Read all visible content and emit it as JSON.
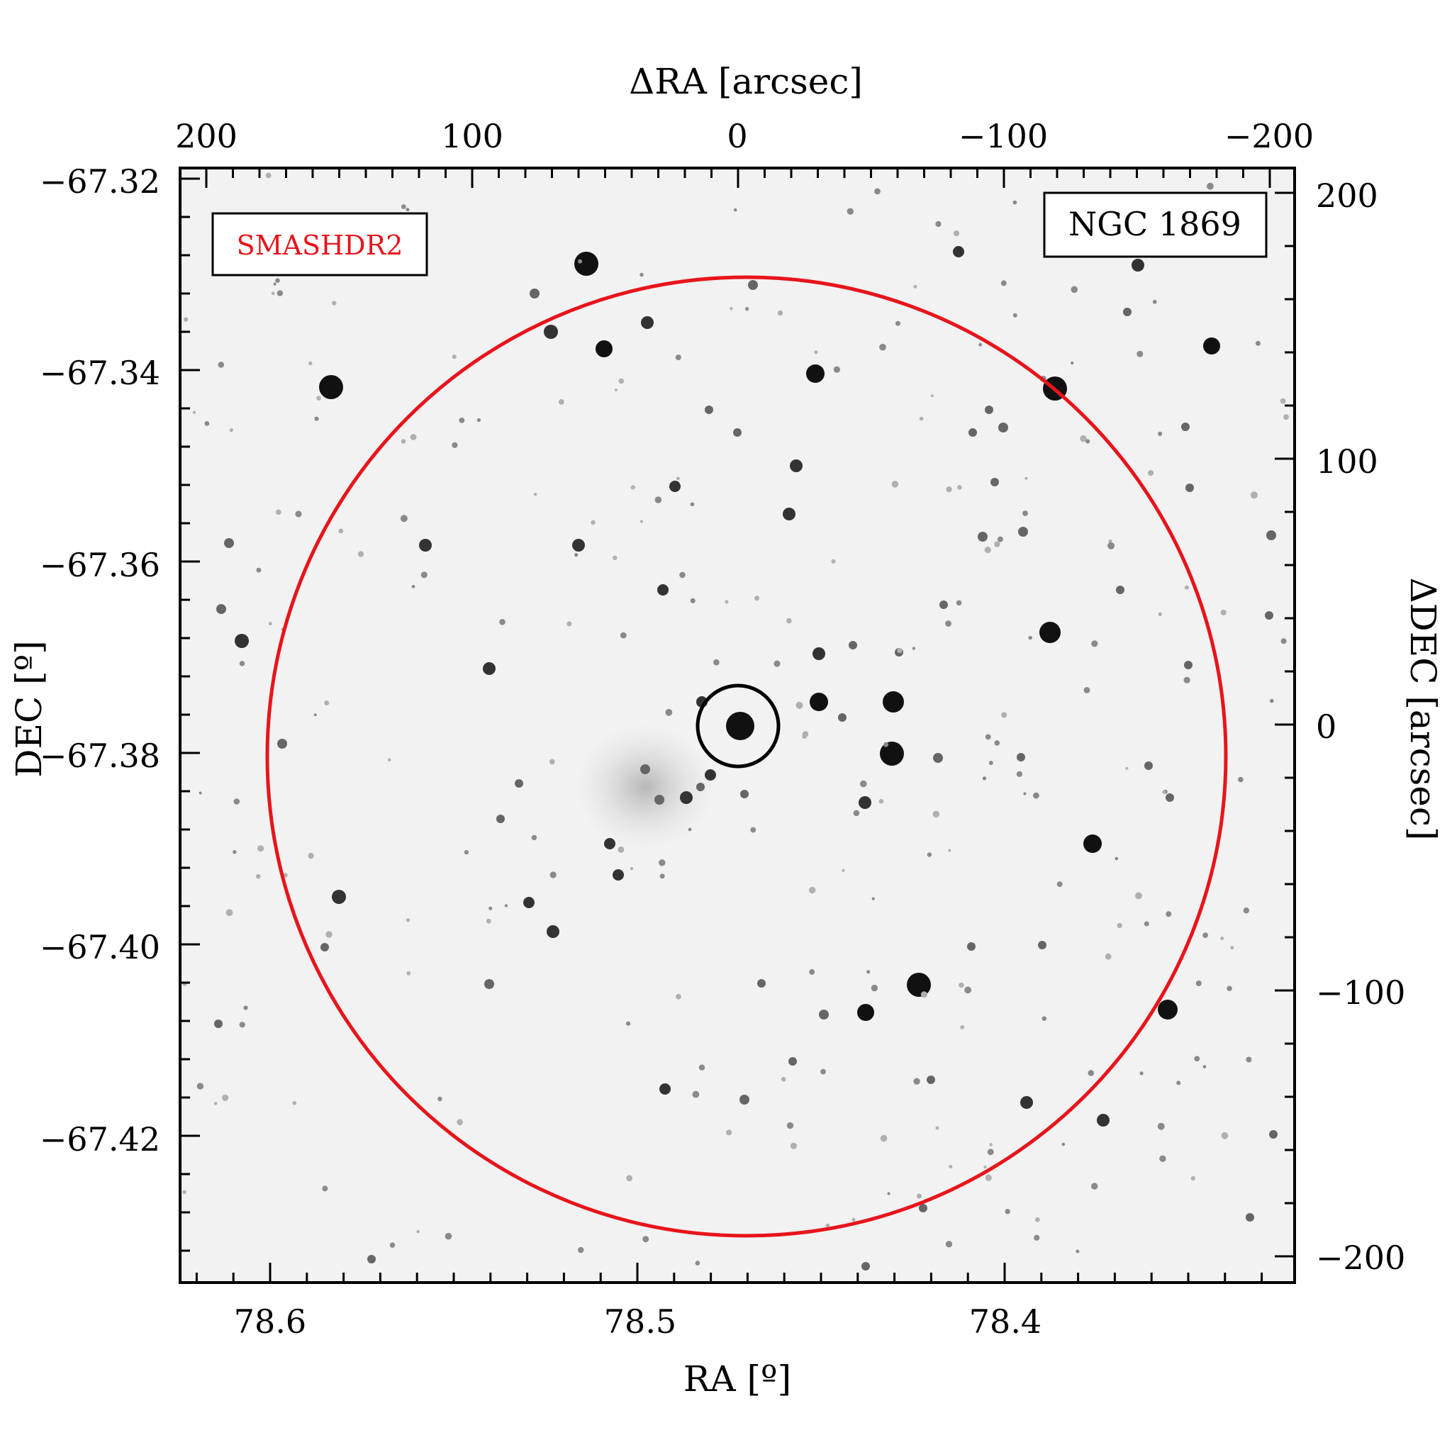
{
  "figure": {
    "survey_label": "SMASHDR2",
    "object_label": "NGC 1869",
    "ra_label": "RA [º]",
    "dec_label": "DEC [º]",
    "dra_label": "ΔRA [arcsec]",
    "ddec_label": "ΔDEC [arcsec]",
    "ra_ticks": [
      "78.6",
      "78.5",
      "78.4"
    ],
    "dec_ticks": [
      "−67.32",
      "−67.34",
      "−67.36",
      "−67.38",
      "−67.40",
      "−67.42"
    ],
    "dra_ticks": [
      "200",
      "100",
      "0",
      "−100",
      "−200"
    ],
    "ddec_ticks": [
      "200",
      "100",
      "0",
      "−100",
      "−200"
    ],
    "colors": {
      "large_circle": "#e8141b",
      "small_circle": "#000000",
      "background": "#f2f2f2"
    },
    "star_field": "dense grayscale star field with a faint diffuse cluster glow centered on NGC 1869"
  }
}
